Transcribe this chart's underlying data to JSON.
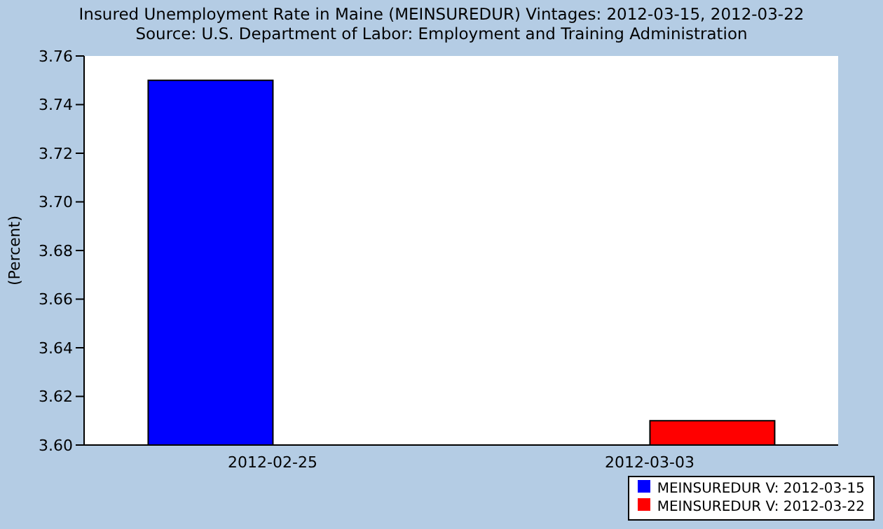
{
  "chart_data": {
    "type": "bar",
    "title": "Insured Unemployment Rate in Maine (MEINSUREDUR) Vintages: 2012-03-15, 2012-03-22",
    "subtitle": "Source: U.S. Department of Labor: Employment and Training Administration",
    "ylabel": "(Percent)",
    "categories": [
      "2012-02-25",
      "2012-03-03"
    ],
    "series": [
      {
        "name": "MEINSUREDUR V: 2012-03-15",
        "color": "#0000ff",
        "values": [
          3.75,
          null
        ]
      },
      {
        "name": "MEINSUREDUR V: 2012-03-22",
        "color": "#ff0000",
        "values": [
          null,
          3.61
        ]
      }
    ],
    "ylim": [
      3.6,
      3.76
    ],
    "yticks": [
      {
        "value": 3.6,
        "label": "3.60"
      },
      {
        "value": 3.62,
        "label": "3.62"
      },
      {
        "value": 3.64,
        "label": "3.64"
      },
      {
        "value": 3.66,
        "label": "3.66"
      },
      {
        "value": 3.68,
        "label": "3.68"
      },
      {
        "value": 3.7,
        "label": "3.70"
      },
      {
        "value": 3.72,
        "label": "3.72"
      },
      {
        "value": 3.74,
        "label": "3.74"
      },
      {
        "value": 3.76,
        "label": "3.76"
      }
    ],
    "legend": "bottom right"
  }
}
